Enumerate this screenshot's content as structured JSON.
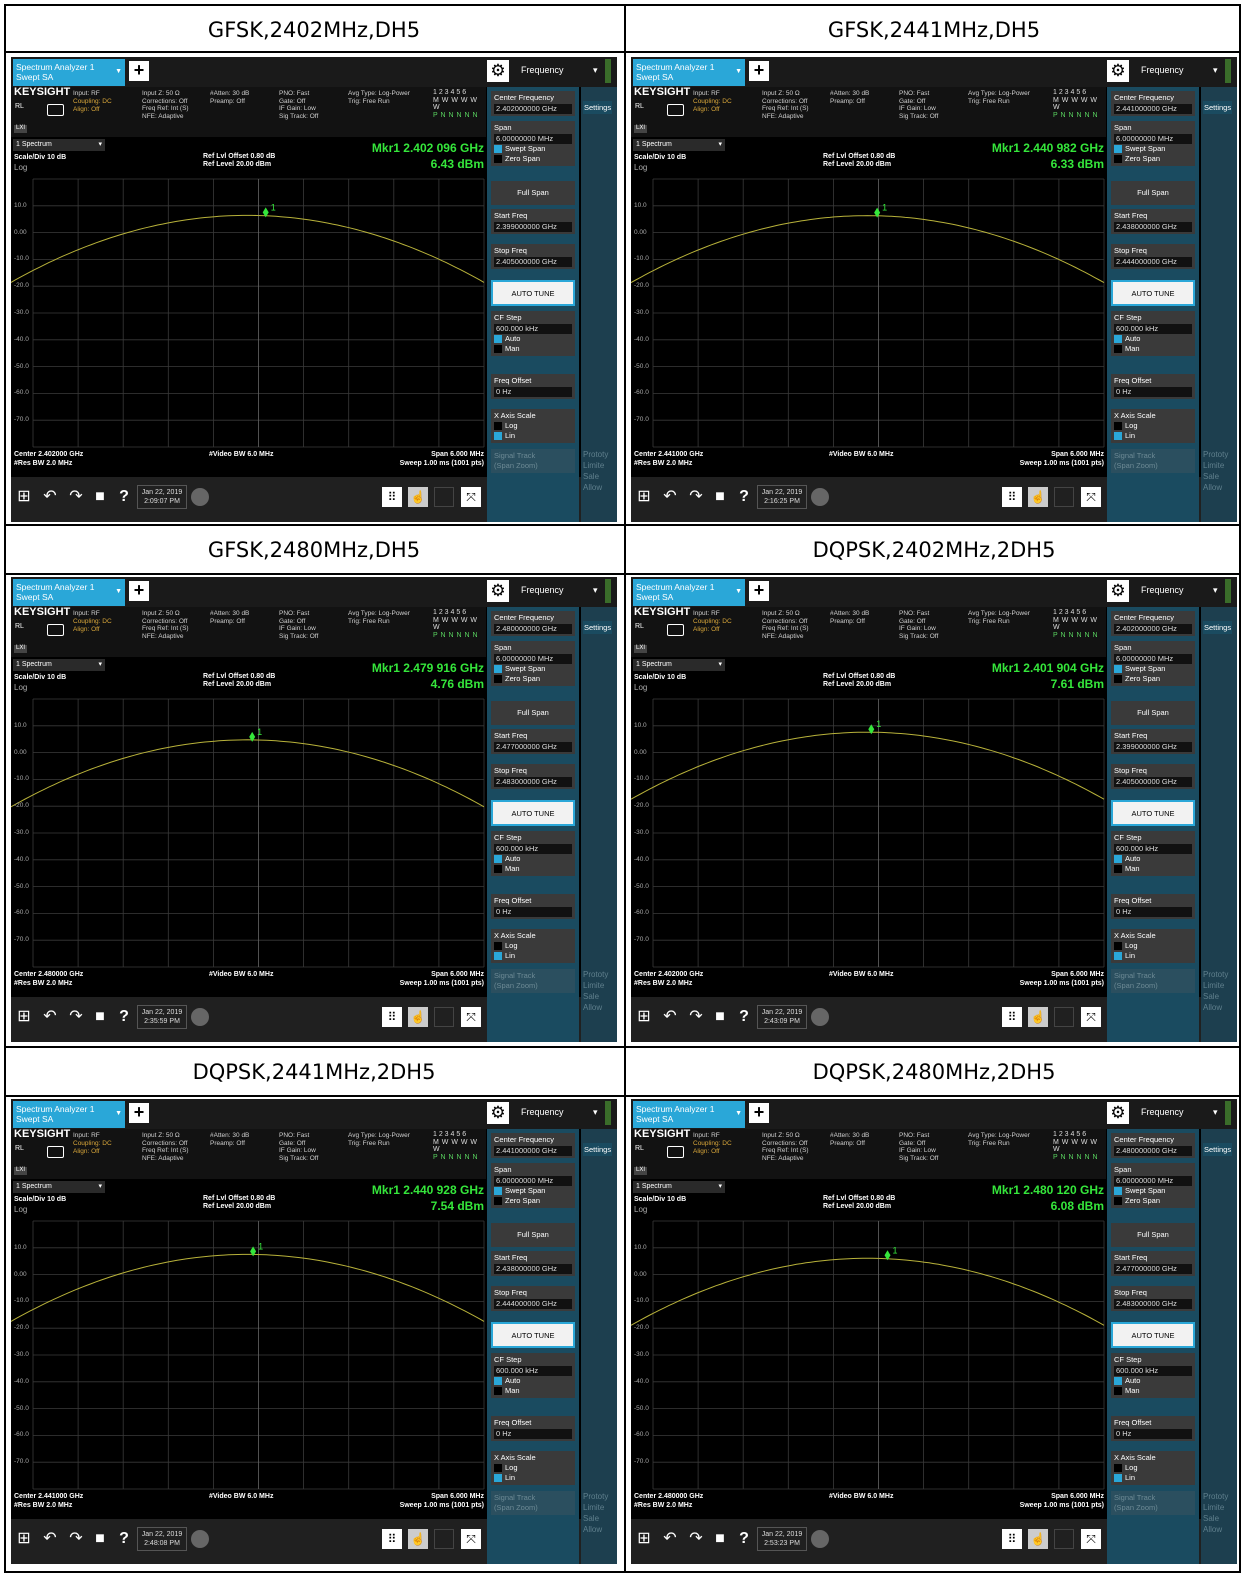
{
  "panels": [
    {
      "caption": "GFSK,2402MHz,DH5",
      "tab": {
        "line1": "Spectrum Analyzer 1",
        "line2": "Swept SA"
      },
      "freq_menu": "Frequency",
      "center_freq": "2.402000000 GHz",
      "start_freq": "2.399000000 GHz",
      "stop_freq": "2.405000000 GHz",
      "marker_freq": "Mkr1  2.402 096 GHz",
      "marker_amp": "6.43 dBm",
      "center_label": "Center 2.402000 GHz",
      "date": "Jan 22, 2019",
      "time": "2:09:07 PM",
      "marker_db": 6.43,
      "marker_x": 0.516
    },
    {
      "caption": "GFSK,2441MHz,DH5",
      "tab": {
        "line1": "Spectrum Analyzer 1",
        "line2": "Swept SA"
      },
      "freq_menu": "Frequency",
      "center_freq": "2.441000000 GHz",
      "start_freq": "2.438000000 GHz",
      "stop_freq": "2.444000000 GHz",
      "marker_freq": "Mkr1  2.440 982 GHz",
      "marker_amp": "6.33 dBm",
      "center_label": "Center 2.441000 GHz",
      "date": "Jan 22, 2019",
      "time": "2:16:25 PM",
      "marker_db": 6.33,
      "marker_x": 0.497
    },
    {
      "caption": "GFSK,2480MHz,DH5",
      "tab": {
        "line1": "Spectrum Analyzer 1",
        "line2": "Swept SA"
      },
      "freq_menu": "Frequency",
      "center_freq": "2.480000000 GHz",
      "start_freq": "2.477000000 GHz",
      "stop_freq": "2.483000000 GHz",
      "marker_freq": "Mkr1  2.479 916 GHz",
      "marker_amp": "4.76 dBm",
      "center_label": "Center 2.480000 GHz",
      "date": "Jan 22, 2019",
      "time": "2:35:59 PM",
      "marker_db": 4.76,
      "marker_x": 0.486
    },
    {
      "caption": "DQPSK,2402MHz,2DH5",
      "tab": {
        "line1": "Spectrum Analyzer 1",
        "line2": "Swept SA"
      },
      "freq_menu": "Frequency",
      "center_freq": "2.402000000 GHz",
      "start_freq": "2.399000000 GHz",
      "stop_freq": "2.405000000 GHz",
      "marker_freq": "Mkr1  2.401 904 GHz",
      "marker_amp": "7.61 dBm",
      "center_label": "Center 2.402000 GHz",
      "date": "Jan 22, 2019",
      "time": "2:43:09 PM",
      "marker_db": 7.61,
      "marker_x": 0.484
    },
    {
      "caption": "DQPSK,2441MHz,2DH5",
      "tab": {
        "line1": "Spectrum Analyzer 1",
        "line2": "Swept SA"
      },
      "freq_menu": "Frequency",
      "center_freq": "2.441000000 GHz",
      "start_freq": "2.438000000 GHz",
      "stop_freq": "2.444000000 GHz",
      "marker_freq": "Mkr1  2.440 928 GHz",
      "marker_amp": "7.54 dBm",
      "center_label": "Center 2.441000 GHz",
      "date": "Jan 22, 2019",
      "time": "2:48:08 PM",
      "marker_db": 7.54,
      "marker_x": 0.488
    },
    {
      "caption": "DQPSK,2480MHz,2DH5",
      "tab": {
        "line1": "Spectrum Analyzer 1",
        "line2": "Swept SA"
      },
      "freq_menu": "Frequency",
      "center_freq": "2.480000000 GHz",
      "start_freq": "2.477000000 GHz",
      "stop_freq": "2.483000000 GHz",
      "marker_freq": "Mkr1  2.480 120 GHz",
      "marker_amp": "6.08 dBm",
      "center_label": "Center 2.480000 GHz",
      "date": "Jan 22, 2019",
      "time": "2:53:23 PM",
      "marker_db": 6.08,
      "marker_x": 0.52
    }
  ],
  "common": {
    "brand": "KEYSIGHT",
    "input_rf": "Input: RF",
    "coupling": "Coupling: DC",
    "align": "Align: Off",
    "rl": "RL",
    "lxi": "LXI",
    "col1": [
      "Input Z: 50 Ω",
      "Corrections: Off",
      "Freq Ref: Int (S)",
      "NFE: Adaptive"
    ],
    "col2": [
      "#Atten: 30 dB",
      "Preamp: Off"
    ],
    "col3": [
      "PNO: Fast",
      "Gate: Off",
      "IF Gain: Low",
      "Sig Track: Off"
    ],
    "col4": [
      "Avg Type: Log-Power",
      "Trig: Free Run"
    ],
    "trace_row1": "1 2 3 4 5 6",
    "trace_row2": "M W W W W W",
    "trace_row3": "P N N N N N",
    "spectrum_sel": "1 Spectrum",
    "scale_div": "Scale/Div 10 dB",
    "log": "Log",
    "ref_offset": "Ref Lvl Offset 0.80 dB",
    "ref_level": "Ref Level 20.00 dBm",
    "y_labels": [
      "10.0",
      "0.00",
      "-10.0",
      "-20.0",
      "-30.0",
      "-40.0",
      "-50.0",
      "-60.0",
      "-70.0"
    ],
    "res_bw": "#Res BW 2.0 MHz",
    "video_bw": "#Video BW 6.0 MHz",
    "span_label": "Span 6.000 MHz",
    "sweep_label": "Sweep 1.00 ms (1001 pts)",
    "marker_num": "1",
    "side": {
      "center_freq_title": "Center Frequency",
      "span_title": "Span",
      "span_value": "6.00000000 MHz",
      "swept_span": "Swept Span",
      "zero_span": "Zero Span",
      "full_span": "Full Span",
      "start_freq_title": "Start Freq",
      "stop_freq_title": "Stop Freq",
      "auto_tune": "AUTO TUNE",
      "cf_step_title": "CF Step",
      "cf_step_value": "600.000 kHz",
      "auto": "Auto",
      "man": "Man",
      "freq_offset_title": "Freq Offset",
      "freq_offset_value": "0 Hz",
      "x_axis_scale": "X Axis Scale",
      "log": "Log",
      "lin": "Lin",
      "signal_track": "Signal Track",
      "span_zoom": "(Span Zoom)"
    },
    "settings_tab": "Settings",
    "side_hint": [
      "Prototy",
      "Limite",
      "Sale",
      "Allow"
    ]
  }
}
